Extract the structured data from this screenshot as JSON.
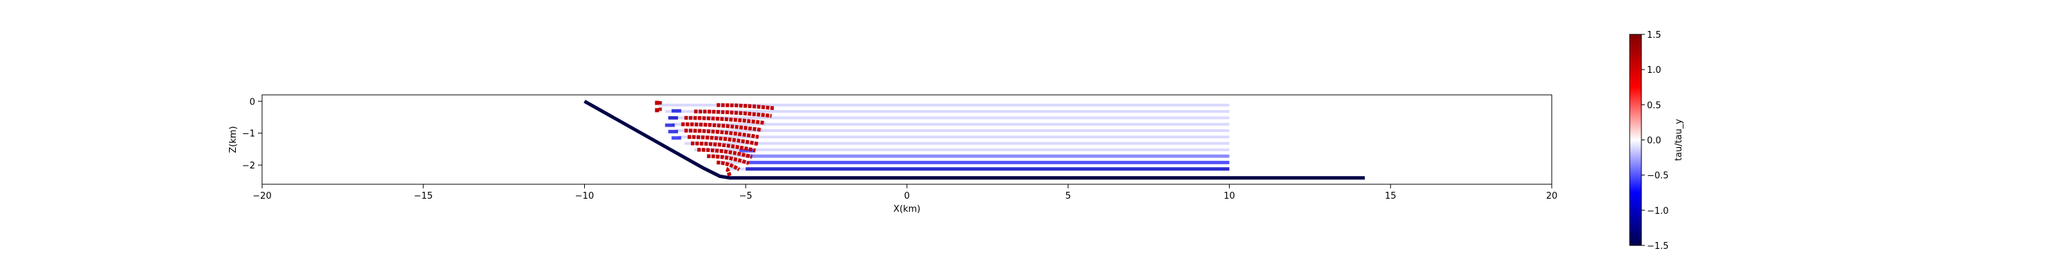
{
  "chart_data": {
    "type": "scatter",
    "title": "",
    "xlabel": "X(km)",
    "ylabel": "Z(km)",
    "xlim": [
      -20,
      20
    ],
    "ylim": [
      -2.6,
      0.2
    ],
    "xticks": [
      -20,
      -15,
      -10,
      -5,
      0,
      5,
      10,
      15,
      20
    ],
    "xtick_labels": [
      "−20",
      "−15",
      "−10",
      "−5",
      "0",
      "5",
      "10",
      "15",
      "20"
    ],
    "yticks": [
      0,
      -1,
      -2
    ],
    "ytick_labels": [
      "0",
      "−1",
      "−2"
    ],
    "grid": false,
    "fault": {
      "x": [
        -10.0,
        -6.3,
        -5.8,
        -5.5,
        14.2
      ],
      "z": [
        0.0,
        -2.1,
        -2.35,
        -2.4,
        -2.4
      ]
    },
    "stress_rows": {
      "z": [
        -0.12,
        -0.32,
        -0.52,
        -0.72,
        -0.92,
        -1.12,
        -1.32,
        -1.52,
        -1.72,
        -1.92,
        -2.12
      ],
      "x_start": [
        -7.7,
        -7.5,
        -7.4,
        -7.3,
        -7.2,
        -7.1,
        -6.9,
        -6.6,
        -6.2,
        -5.9,
        -5.6
      ],
      "x_end": [
        10.0,
        10.0,
        10.0,
        10.0,
        10.0,
        10.0,
        10.0,
        10.0,
        10.0,
        10.0,
        10.0
      ],
      "red_from": [
        -5.9,
        -6.6,
        -6.9,
        -7.0,
        -6.9,
        -6.8,
        -6.7,
        -6.5,
        -6.2,
        -5.9,
        -5.6
      ],
      "red_to": [
        -4.1,
        -4.2,
        -4.4,
        -4.5,
        -4.6,
        -4.6,
        -4.7,
        -4.8,
        -4.9,
        -5.2,
        -5.5
      ],
      "red_drop": [
        0.1,
        0.14,
        0.16,
        0.18,
        0.2,
        0.22,
        0.22,
        0.22,
        0.22,
        0.22,
        0.22
      ],
      "blue_segments": [
        {
          "x": [
            -7.7,
            -7.6
          ],
          "z": -0.05,
          "v": 1.3
        },
        {
          "x": [
            -7.7,
            -7.6
          ],
          "z": -0.25,
          "v": 1.2
        },
        {
          "x": [
            -7.3,
            -7.0
          ],
          "z": -0.3,
          "v": -0.9
        },
        {
          "x": [
            -7.4,
            -7.1
          ],
          "z": -0.52,
          "v": -1.0
        },
        {
          "x": [
            -7.5,
            -7.2
          ],
          "z": -0.75,
          "v": -0.9
        },
        {
          "x": [
            -7.4,
            -7.1
          ],
          "z": -0.95,
          "v": -0.9
        },
        {
          "x": [
            -7.3,
            -7.0
          ],
          "z": -1.15,
          "v": -0.8
        },
        {
          "x": [
            -5.2,
            -4.7
          ],
          "z": -1.55,
          "v": -0.7
        },
        {
          "x": [
            -5.0,
            10.0
          ],
          "z": -1.72,
          "v": -0.5
        },
        {
          "x": [
            -4.9,
            10.0
          ],
          "z": -1.92,
          "v": -0.7
        },
        {
          "x": [
            -5.0,
            10.0
          ],
          "z": -2.12,
          "v": -1.0
        }
      ],
      "background_value": -0.25
    },
    "colorbar": {
      "label": "tau/tau_y",
      "vmin": -1.5,
      "vmax": 1.5,
      "ticks": [
        1.5,
        1.0,
        0.5,
        0.0,
        -0.5,
        -1.0,
        -1.5
      ],
      "tick_labels": [
        "1.5",
        "1.0",
        "0.5",
        "0.0",
        "−0.5",
        "−1.0",
        "−1.5"
      ],
      "colormap": "seismic",
      "colors": [
        "#00004c",
        "#0000ff",
        "#ffffff",
        "#ff0000",
        "#800000"
      ]
    }
  }
}
